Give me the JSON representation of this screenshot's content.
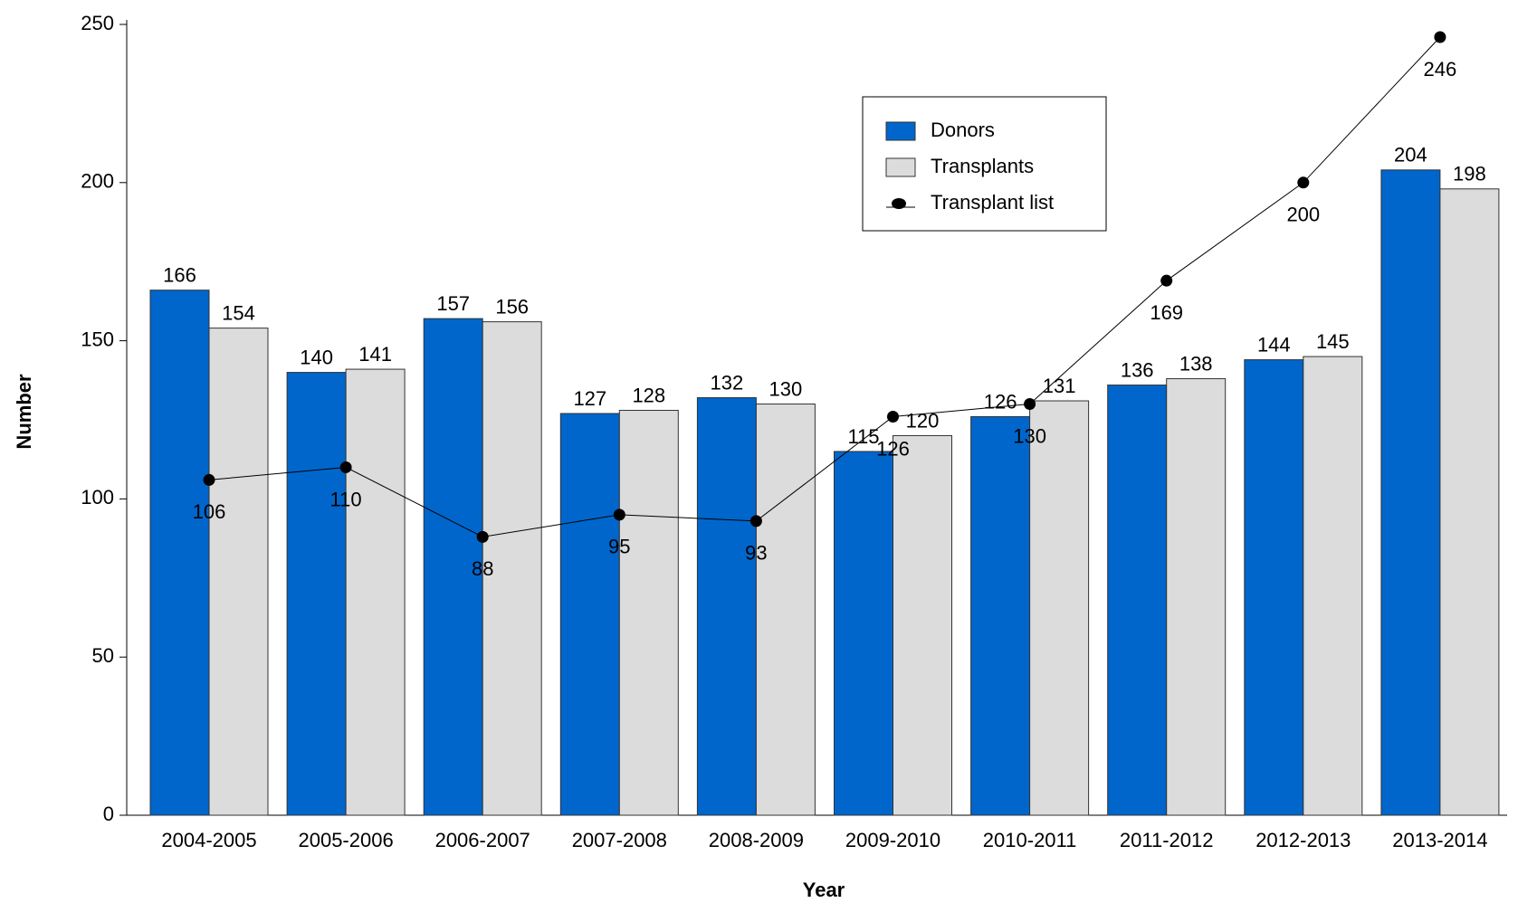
{
  "chart_data": {
    "type": "bar_line",
    "xlabel": "Year",
    "ylabel": "Number",
    "categories": [
      "2004-2005",
      "2005-2006",
      "2006-2007",
      "2007-2008",
      "2008-2009",
      "2009-2010",
      "2010-2011",
      "2011-2012",
      "2012-2013",
      "2013-2014"
    ],
    "series": [
      {
        "name": "Donors",
        "type": "bar",
        "color": "#0066cc",
        "values": [
          166,
          140,
          157,
          127,
          132,
          115,
          126,
          136,
          144,
          204
        ]
      },
      {
        "name": "Transplants",
        "type": "bar",
        "color": "#dcdcdc",
        "values": [
          154,
          141,
          156,
          128,
          130,
          120,
          131,
          138,
          145,
          198
        ]
      },
      {
        "name": "Transplant list",
        "type": "line",
        "color": "#000000",
        "values": [
          106,
          110,
          88,
          95,
          93,
          126,
          130,
          169,
          200,
          246
        ]
      }
    ],
    "ylim": [
      0,
      250
    ],
    "yticks": [
      0,
      50,
      100,
      150,
      200,
      250
    ],
    "legend": "upper right"
  }
}
